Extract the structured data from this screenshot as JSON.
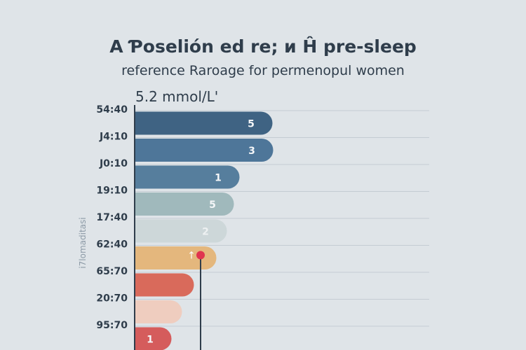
{
  "chart_data": {
    "type": "bar",
    "orientation": "horizontal",
    "title": "A Ƥoselión ed re; ᴎ Ĥ pre-sleep",
    "subtitle": "reference Raroage for permenopul women",
    "reference_label": "5.2 mmol/L'",
    "ylabel": "i7lomaditasi",
    "categories": [
      "54:40",
      "J4:10",
      "J0:10",
      "19:10",
      "17:40",
      "62:40",
      "65:70",
      "20:70",
      "95:70"
    ],
    "values": [
      196,
      197,
      149,
      141,
      131,
      116,
      84,
      67,
      52
    ],
    "data_labels": [
      "5",
      "3",
      "1",
      "5",
      "2",
      "",
      "",
      "",
      "1"
    ],
    "marker_label": "↑",
    "colors": [
      "#3f6383",
      "#4e7699",
      "#567e9d",
      "#a0b9bc",
      "#cdd7d9",
      "#e4b77d",
      "#d96a5b",
      "#efcdbf",
      "#d55c5c"
    ],
    "marker_value": 94,
    "xlim": [
      0,
      420
    ],
    "grid": true
  }
}
